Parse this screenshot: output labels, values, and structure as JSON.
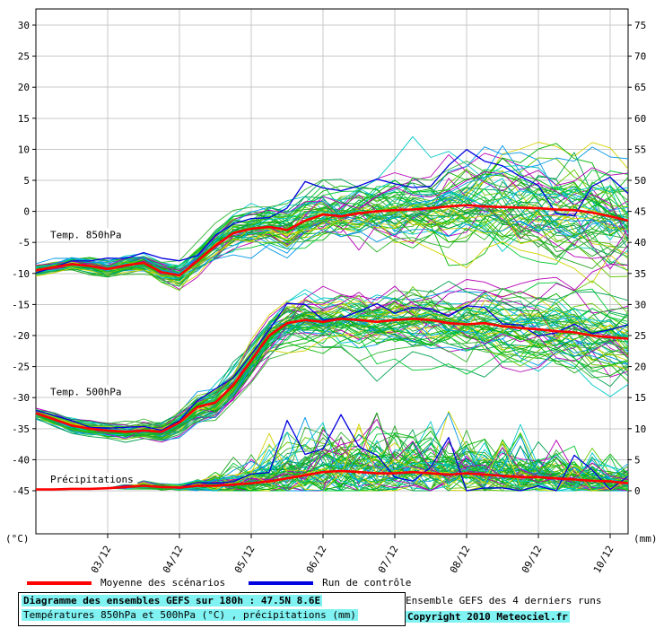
{
  "colors": {
    "accent_red": "#ff0000",
    "control_blue": "#0000e0",
    "grid": "#c8c8c8",
    "axis": "#000000",
    "highlight_cyan": "#80f2f2",
    "background": "#ffffff"
  },
  "axes": {
    "left_ticks": [
      30,
      25,
      20,
      15,
      10,
      5,
      0,
      -5,
      -10,
      -15,
      -20,
      -25,
      -30,
      -35,
      -40,
      -45
    ],
    "right_ticks": [
      75,
      70,
      65,
      60,
      55,
      50,
      45,
      40,
      35,
      30,
      25,
      20,
      15,
      10,
      5,
      0
    ],
    "unit_left": "(°C)",
    "unit_right": "(mm)"
  },
  "legend": {
    "mean_label": "Moyenne des scénarios",
    "control_label": "Run de contrôle"
  },
  "footer": {
    "title": "Diagramme des ensembles GEFS sur 180h : 47.5N 8.6E",
    "subtitle": "Températures 850hPa et 500hPa (°C) , précipitations (mm)",
    "runs_info": "Ensemble GEFS des 4 derniers runs",
    "copyright": "Copyright 2010 Meteociel.fr"
  },
  "chart_data": {
    "type": "line",
    "title": "Diagramme des ensembles GEFS sur 180h : 47.5N 8.6E",
    "x_unit": "days (dates dd/mm on axis)",
    "x_days": [
      0,
      0.25,
      0.5,
      0.75,
      1,
      1.25,
      1.5,
      1.75,
      2,
      2.25,
      2.5,
      2.75,
      3,
      3.25,
      3.5,
      3.75,
      4,
      4.25,
      4.5,
      4.75,
      5,
      5.25,
      5.5,
      5.75,
      6,
      6.25,
      6.5,
      6.75,
      7,
      7.25,
      7.5,
      7.75,
      8,
      8.25
    ],
    "x_tick_days": [
      1,
      2,
      3,
      4,
      5,
      6,
      7,
      8
    ],
    "x_tick_labels": [
      "03/12",
      "04/12",
      "05/12",
      "06/12",
      "07/12",
      "08/12",
      "09/12",
      "10/12"
    ],
    "ylim_left_celsius": [
      -45,
      30
    ],
    "ylim_right_mm": [
      0,
      75
    ],
    "grid": true,
    "legend_position": "bottom",
    "annotations": [
      {
        "text": "Temp. 850hPa",
        "x_day": 0.2,
        "value": -4.0
      },
      {
        "text": "Temp. 500hPa",
        "x_day": 0.2,
        "value": -29.3
      },
      {
        "text": "Précipitations",
        "x_day": 0.2,
        "value": -43.4
      }
    ],
    "series": [
      {
        "name": "Temp. 850hPa - moyenne des scénarios",
        "axis": "left",
        "color": "#ff0000",
        "values": [
          -9.5,
          -9,
          -8.5,
          -8.8,
          -9.3,
          -8.7,
          -8.3,
          -9.8,
          -10.3,
          -8,
          -5.5,
          -3.5,
          -2.8,
          -2.5,
          -3,
          -1.5,
          -0.5,
          -0.8,
          -0.3,
          0,
          0.2,
          0.3,
          0.5,
          0.8,
          1,
          0.8,
          0.7,
          0.6,
          0.5,
          0.3,
          0.2,
          -0.2,
          -0.8,
          -1.5
        ]
      },
      {
        "name": "Temp. 500hPa - moyenne des scénarios",
        "axis": "left",
        "color": "#ff0000",
        "values": [
          -32.5,
          -33.5,
          -34.5,
          -35,
          -35.3,
          -35.5,
          -35.3,
          -35.5,
          -34,
          -31.5,
          -30.8,
          -28,
          -24,
          -20,
          -18,
          -17.5,
          -17.8,
          -17.3,
          -17.5,
          -17.8,
          -17.5,
          -17.3,
          -17.5,
          -18,
          -18.2,
          -18,
          -18.5,
          -18.8,
          -19,
          -19.3,
          -19.5,
          -20,
          -20.3,
          -20.5
        ]
      },
      {
        "name": "Précipitations - moyenne des scénarios",
        "axis": "right",
        "color": "#ff0000",
        "values": [
          0.2,
          0.2,
          0.3,
          0.3,
          0.4,
          0.6,
          0.8,
          0.6,
          0.5,
          0.8,
          0.8,
          1,
          1.2,
          1.5,
          2,
          2.5,
          3,
          3.2,
          3,
          2.8,
          2.8,
          3,
          2.8,
          2.6,
          2.8,
          2.6,
          2.4,
          2.2,
          2.2,
          2,
          1.8,
          1.6,
          1.5,
          1.2
        ]
      }
    ],
    "ensemble": {
      "members_per_band": 60,
      "seed": 1337,
      "palette": [
        "#00b400",
        "#00c832",
        "#28a428",
        "#00c8c8",
        "#b400b4",
        "#d2d200",
        "#64c800",
        "#0096e6",
        "#00a050",
        "#32b432"
      ],
      "spread_850": [
        0.6,
        0.6,
        0.65,
        0.7,
        0.75,
        0.8,
        0.9,
        1,
        1.1,
        1.3,
        1.5,
        1.7,
        1.9,
        2,
        2.2,
        2.4,
        2.5,
        2.6,
        2.7,
        2.8,
        2.9,
        3,
        3.1,
        3.2,
        3.3,
        3.4,
        3.5,
        3.6,
        3.7,
        3.8,
        3.9,
        4,
        4.1,
        4.2
      ],
      "spread_500": [
        0.5,
        0.5,
        0.55,
        0.6,
        0.65,
        0.7,
        0.75,
        0.8,
        0.9,
        1.1,
        1.2,
        1.4,
        1.6,
        1.8,
        2,
        2.1,
        2.2,
        2.3,
        2.4,
        2.5,
        2.6,
        2.7,
        2.8,
        2.9,
        3,
        3,
        3.1,
        3.1,
        3.2,
        3.2,
        3.3,
        3.3,
        3.4,
        3.5
      ],
      "precip_amp": [
        0,
        0,
        0,
        0,
        0,
        0.2,
        0.3,
        0.3,
        0.3,
        0.5,
        0.8,
        1.2,
        1.8,
        2.5,
        3,
        3.2,
        3.2,
        3,
        3,
        3.2,
        3,
        2.8,
        3,
        2.8,
        2.6,
        2.6,
        2.4,
        2.4,
        2.2,
        2.2,
        2,
        2,
        1.8,
        1.6
      ]
    }
  }
}
